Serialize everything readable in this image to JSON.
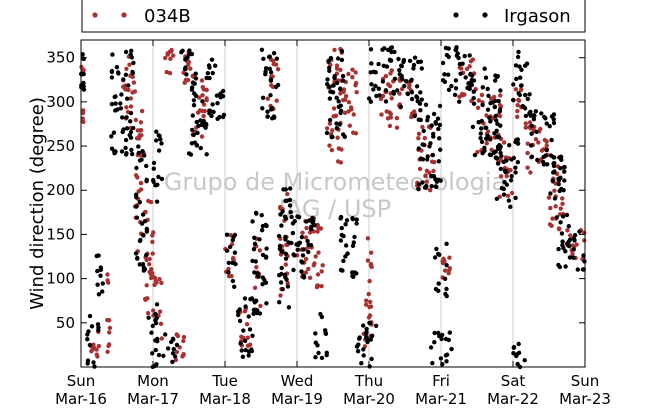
{
  "chart_data": {
    "type": "scatter",
    "ylabel": "Wind direction (degree)",
    "xlabel": "",
    "xlim": [
      "2014-03-16",
      "2014-03-23"
    ],
    "ylim": [
      0,
      370
    ],
    "yticks": [
      50,
      100,
      150,
      200,
      250,
      300,
      350
    ],
    "xticks": [
      {
        "date": "2014-03-16",
        "day": "Sun",
        "label": "Mar-16"
      },
      {
        "date": "2014-03-17",
        "day": "Mon",
        "label": "Mar-17"
      },
      {
        "date": "2014-03-18",
        "day": "Tue",
        "label": "Mar-18"
      },
      {
        "date": "2014-03-19",
        "day": "Wed",
        "label": "Mar-19"
      },
      {
        "date": "2014-03-20",
        "day": "Thu",
        "label": "Mar-20"
      },
      {
        "date": "2014-03-21",
        "day": "Fri",
        "label": "Mar-21"
      },
      {
        "date": "2014-03-22",
        "day": "Sat",
        "label": "Mar-22"
      },
      {
        "date": "2014-03-23",
        "day": "Sun",
        "label": "Mar-23"
      }
    ],
    "grid": "vertical",
    "legend_position": "top",
    "watermark": [
      "Grupo de Micrometeorologia",
      "IAG / USP"
    ],
    "series": [
      {
        "name": "034B",
        "color": "#a83232",
        "clusters": [
          {
            "t": "2014-03-16T00:00",
            "t_end": "2014-03-16T01:00",
            "y": [
              260,
              350
            ]
          },
          {
            "t": "2014-03-16T03:00",
            "t_end": "2014-03-16T06:00",
            "y": [
              5,
              45
            ]
          },
          {
            "t": "2014-03-16T08:00",
            "t_end": "2014-03-16T10:00",
            "y": [
              15,
              110
            ]
          },
          {
            "t": "2014-03-16T14:00",
            "t_end": "2014-03-16T18:00",
            "y": [
              270,
              355
            ]
          },
          {
            "t": "2014-03-16T18:00",
            "t_end": "2014-03-16T21:00",
            "y": [
              130,
              290
            ]
          },
          {
            "t": "2014-03-16T21:00",
            "t_end": "2014-03-17T01:00",
            "y": [
              60,
              190
            ]
          },
          {
            "t": "2014-03-17T00:00",
            "t_end": "2014-03-17T03:00",
            "y": [
              30,
              100
            ]
          },
          {
            "t": "2014-03-17T04:00",
            "t_end": "2014-03-17T07:00",
            "y": [
              330,
              360
            ]
          },
          {
            "t": "2014-03-17T07:00",
            "t_end": "2014-03-17T11:00",
            "y": [
              5,
              40
            ]
          },
          {
            "t": "2014-03-17T10:00",
            "t_end": "2014-03-17T13:00",
            "y": [
              320,
              360
            ]
          },
          {
            "t": "2014-03-17T13:00",
            "t_end": "2014-03-17T18:00",
            "y": [
              250,
              330
            ]
          },
          {
            "t": "2014-03-18T00:00",
            "t_end": "2014-03-18T03:00",
            "y": [
              100,
              150
            ]
          },
          {
            "t": "2014-03-18T05:00",
            "t_end": "2014-03-18T09:00",
            "y": [
              20,
              70
            ]
          },
          {
            "t": "2014-03-18T10:00",
            "t_end": "2014-03-18T12:00",
            "y": [
              60,
              170
            ]
          },
          {
            "t": "2014-03-18T14:00",
            "t_end": "2014-03-18T18:00",
            "y": [
              290,
              350
            ]
          },
          {
            "t": "2014-03-18T18:00",
            "t_end": "2014-03-18T21:00",
            "y": [
              80,
              200
            ]
          },
          {
            "t": "2014-03-19T00:00",
            "t_end": "2014-03-19T04:00",
            "y": [
              100,
              170
            ]
          },
          {
            "t": "2014-03-19T04:00",
            "t_end": "2014-03-19T09:00",
            "y": [
              90,
              170
            ]
          },
          {
            "t": "2014-03-19T10:00",
            "t_end": "2014-03-19T15:00",
            "y": [
              230,
              360
            ]
          },
          {
            "t": "2014-03-19T15:00",
            "t_end": "2014-03-19T20:00",
            "y": [
              260,
              340
            ]
          },
          {
            "t": "2014-03-19T22:00",
            "t_end": "2014-03-20T01:00",
            "y": [
              20,
              150
            ]
          },
          {
            "t": "2014-03-20T04:00",
            "t_end": "2014-03-20T10:00",
            "y": [
              270,
              340
            ]
          },
          {
            "t": "2014-03-20T10:00",
            "t_end": "2014-03-20T16:00",
            "y": [
              280,
              330
            ]
          },
          {
            "t": "2014-03-20T16:00",
            "t_end": "2014-03-20T22:00",
            "y": [
              200,
              280
            ]
          },
          {
            "t": "2014-03-21T00:00",
            "t_end": "2014-03-21T03:00",
            "y": [
              100,
              130
            ]
          },
          {
            "t": "2014-03-21T06:00",
            "t_end": "2014-03-21T12:00",
            "y": [
              300,
              350
            ]
          },
          {
            "t": "2014-03-21T12:00",
            "t_end": "2014-03-21T20:00",
            "y": [
              240,
              310
            ]
          },
          {
            "t": "2014-03-21T19:00",
            "t_end": "2014-03-22T00:00",
            "y": [
              190,
              260
            ]
          },
          {
            "t": "2014-03-22T00:00",
            "t_end": "2014-03-22T03:00",
            "y": [
              280,
              320
            ]
          },
          {
            "t": "2014-03-22T04:00",
            "t_end": "2014-03-22T12:00",
            "y": [
              220,
              280
            ]
          },
          {
            "t": "2014-03-22T12:00",
            "t_end": "2014-03-22T17:00",
            "y": [
              150,
              230
            ]
          },
          {
            "t": "2014-03-22T17:00",
            "t_end": "2014-03-23T00:00",
            "y": [
              120,
              160
            ]
          }
        ]
      },
      {
        "name": "Irgason",
        "color": "#000000",
        "clusters": [
          {
            "t": "2014-03-16T00:00",
            "t_end": "2014-03-16T01:00",
            "y": [
              300,
              360
            ]
          },
          {
            "t": "2014-03-16T02:00",
            "t_end": "2014-03-16T06:00",
            "y": [
              0,
              60
            ]
          },
          {
            "t": "2014-03-16T05:00",
            "t_end": "2014-03-16T08:00",
            "y": [
              80,
              130
            ]
          },
          {
            "t": "2014-03-16T10:00",
            "t_end": "2014-03-16T18:00",
            "y": [
              240,
              360
            ]
          },
          {
            "t": "2014-03-16T18:00",
            "t_end": "2014-03-16T22:00",
            "y": [
              100,
              250
            ]
          },
          {
            "t": "2014-03-16T22:00",
            "t_end": "2014-03-17T02:00",
            "y": [
              0,
              80
            ]
          },
          {
            "t": "2014-03-17T02:00",
            "t_end": "2014-03-17T08:00",
            "y": [
              5,
              40
            ]
          },
          {
            "t": "2014-03-17T00:00",
            "t_end": "2014-03-17T03:00",
            "y": [
              180,
              280
            ]
          },
          {
            "t": "2014-03-17T08:00",
            "t_end": "2014-03-17T13:00",
            "y": [
              320,
              362
            ]
          },
          {
            "t": "2014-03-17T12:00",
            "t_end": "2014-03-17T18:00",
            "y": [
              240,
              340
            ]
          },
          {
            "t": "2014-03-17T18:00",
            "t_end": "2014-03-18T00:00",
            "y": [
              280,
              350
            ]
          },
          {
            "t": "2014-03-18T00:00",
            "t_end": "2014-03-18T04:00",
            "y": [
              90,
              150
            ]
          },
          {
            "t": "2014-03-18T04:00",
            "t_end": "2014-03-18T10:00",
            "y": [
              10,
              80
            ]
          },
          {
            "t": "2014-03-18T09:00",
            "t_end": "2014-03-18T14:00",
            "y": [
              60,
              180
            ]
          },
          {
            "t": "2014-03-18T12:00",
            "t_end": "2014-03-18T18:00",
            "y": [
              280,
              360
            ]
          },
          {
            "t": "2014-03-18T18:00",
            "t_end": "2014-03-18T22:00",
            "y": [
              60,
              210
            ]
          },
          {
            "t": "2014-03-18T22:00",
            "t_end": "2014-03-19T06:00",
            "y": [
              100,
              180
            ]
          },
          {
            "t": "2014-03-19T06:00",
            "t_end": "2014-03-19T10:00",
            "y": [
              0,
              60
            ]
          },
          {
            "t": "2014-03-19T10:00",
            "t_end": "2014-03-19T16:00",
            "y": [
              250,
              362
            ]
          },
          {
            "t": "2014-03-19T14:00",
            "t_end": "2014-03-19T20:00",
            "y": [
              100,
              180
            ]
          },
          {
            "t": "2014-03-19T20:00",
            "t_end": "2014-03-20T04:00",
            "y": [
              0,
              50
            ]
          },
          {
            "t": "2014-03-20T00:00",
            "t_end": "2014-03-20T10:00",
            "y": [
              300,
              362
            ]
          },
          {
            "t": "2014-03-20T10:00",
            "t_end": "2014-03-20T18:00",
            "y": [
              280,
              350
            ]
          },
          {
            "t": "2014-03-20T16:00",
            "t_end": "2014-03-21T00:00",
            "y": [
              200,
              300
            ]
          },
          {
            "t": "2014-03-20T22:00",
            "t_end": "2014-03-21T02:00",
            "y": [
              80,
              140
            ]
          },
          {
            "t": "2014-03-20T20:00",
            "t_end": "2014-03-21T04:00",
            "y": [
              0,
              40
            ]
          },
          {
            "t": "2014-03-21T00:00",
            "t_end": "2014-03-21T10:00",
            "y": [
              300,
              362
            ]
          },
          {
            "t": "2014-03-21T10:00",
            "t_end": "2014-03-21T20:00",
            "y": [
              230,
              340
            ]
          },
          {
            "t": "2014-03-21T18:00",
            "t_end": "2014-03-22T02:00",
            "y": [
              180,
              260
            ]
          },
          {
            "t": "2014-03-22T00:00",
            "t_end": "2014-03-22T06:00",
            "y": [
              280,
              360
            ]
          },
          {
            "t": "2014-03-22T06:00",
            "t_end": "2014-03-22T14:00",
            "y": [
              220,
              290
            ]
          },
          {
            "t": "2014-03-22T12:00",
            "t_end": "2014-03-22T18:00",
            "y": [
              160,
              240
            ]
          },
          {
            "t": "2014-03-22T15:00",
            "t_end": "2014-03-23T00:00",
            "y": [
              110,
              165
            ]
          },
          {
            "t": "2014-03-22T00:00",
            "t_end": "2014-03-22T04:00",
            "y": [
              0,
              30
            ]
          }
        ]
      }
    ]
  }
}
